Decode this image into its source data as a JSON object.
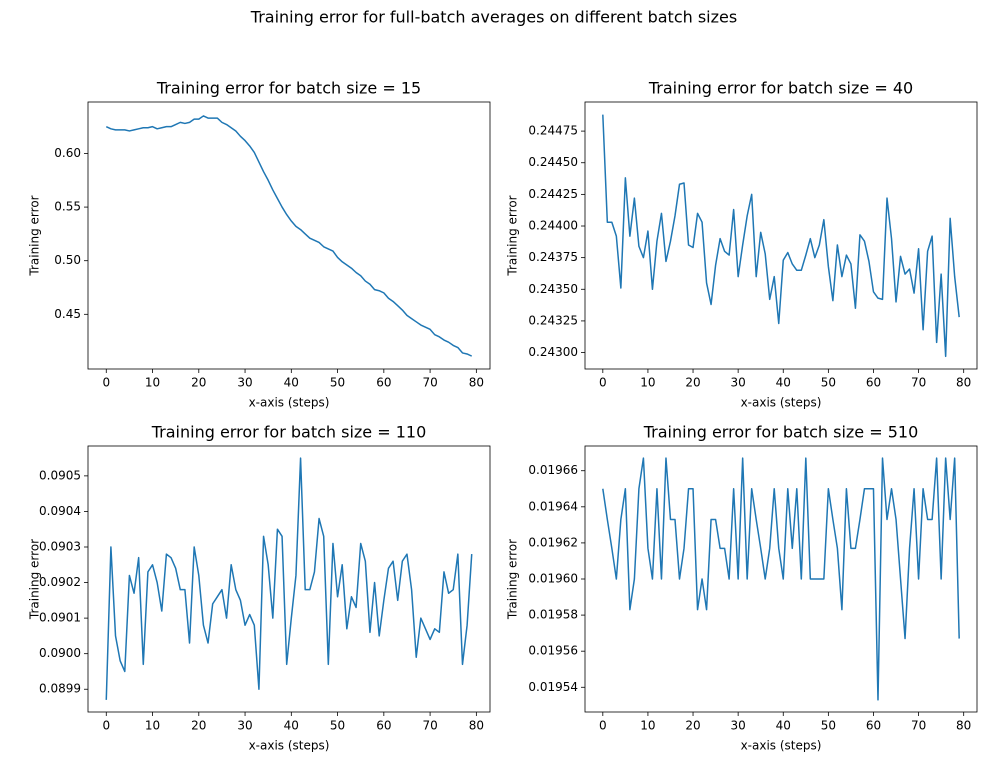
{
  "title": "Training error for full-batch averages on different batch sizes",
  "chart_data": [
    {
      "type": "line",
      "title": "Training error for batch size = 15",
      "x_label": "x-axis (steps)",
      "y_label": "Training error",
      "color": "#1f77b4",
      "x": [
        0,
        1,
        2,
        3,
        4,
        5,
        6,
        7,
        8,
        9,
        10,
        11,
        12,
        13,
        14,
        15,
        16,
        17,
        18,
        19,
        20,
        21,
        22,
        23,
        24,
        25,
        26,
        27,
        28,
        29,
        30,
        31,
        32,
        33,
        34,
        35,
        36,
        37,
        38,
        39,
        40,
        41,
        42,
        43,
        44,
        45,
        46,
        47,
        48,
        49,
        50,
        51,
        52,
        53,
        54,
        55,
        56,
        57,
        58,
        59,
        60,
        61,
        62,
        63,
        64,
        65,
        66,
        67,
        68,
        69,
        70,
        71,
        72,
        73,
        74,
        75,
        76,
        77,
        78,
        79
      ],
      "values": [
        0.625,
        0.623,
        0.622,
        0.622,
        0.622,
        0.621,
        0.622,
        0.623,
        0.624,
        0.624,
        0.625,
        0.623,
        0.624,
        0.625,
        0.625,
        0.627,
        0.629,
        0.628,
        0.629,
        0.632,
        0.632,
        0.635,
        0.633,
        0.633,
        0.633,
        0.629,
        0.627,
        0.624,
        0.621,
        0.616,
        0.612,
        0.607,
        0.601,
        0.592,
        0.583,
        0.575,
        0.566,
        0.558,
        0.55,
        0.543,
        0.537,
        0.532,
        0.529,
        0.525,
        0.521,
        0.519,
        0.517,
        0.513,
        0.511,
        0.509,
        0.503,
        0.499,
        0.496,
        0.493,
        0.489,
        0.486,
        0.481,
        0.478,
        0.473,
        0.472,
        0.47,
        0.465,
        0.462,
        0.458,
        0.454,
        0.449,
        0.446,
        0.443,
        0.44,
        0.438,
        0.436,
        0.431,
        0.429,
        0.426,
        0.424,
        0.421,
        0.419,
        0.414,
        0.413,
        0.411
      ],
      "xlim": [
        -3.95,
        82.95
      ],
      "xticks": [
        0,
        10,
        20,
        30,
        40,
        50,
        60,
        70,
        80
      ],
      "ylim": [
        0.399,
        0.648
      ],
      "yticks": [
        0.45,
        {
          "value": 0.5,
          "label": "0.50"
        },
        0.55,
        {
          "value": 0.6,
          "label": "0.60"
        }
      ]
    },
    {
      "type": "line",
      "title": "Training error for batch size = 40",
      "x_label": "x-axis (steps)",
      "y_label": "Training error",
      "color": "#1f77b4",
      "x": [
        0,
        1,
        2,
        3,
        4,
        5,
        6,
        7,
        8,
        9,
        10,
        11,
        12,
        13,
        14,
        15,
        16,
        17,
        18,
        19,
        20,
        21,
        22,
        23,
        24,
        25,
        26,
        27,
        28,
        29,
        30,
        31,
        32,
        33,
        34,
        35,
        36,
        37,
        38,
        39,
        40,
        41,
        42,
        43,
        44,
        45,
        46,
        47,
        48,
        49,
        50,
        51,
        52,
        53,
        54,
        55,
        56,
        57,
        58,
        59,
        60,
        61,
        62,
        63,
        64,
        65,
        66,
        67,
        68,
        69,
        70,
        71,
        72,
        73,
        74,
        75,
        76,
        77,
        78,
        79
      ],
      "values": [
        0.24488,
        0.24403,
        0.24403,
        0.24392,
        0.24351,
        0.24438,
        0.24392,
        0.24422,
        0.24384,
        0.24375,
        0.24396,
        0.2435,
        0.24388,
        0.2441,
        0.24372,
        0.24388,
        0.24408,
        0.24433,
        0.24434,
        0.24385,
        0.24383,
        0.2441,
        0.24403,
        0.24355,
        0.24338,
        0.24369,
        0.2439,
        0.2438,
        0.24377,
        0.24413,
        0.2436,
        0.24385,
        0.24408,
        0.24425,
        0.2436,
        0.24395,
        0.24378,
        0.24342,
        0.2436,
        0.24323,
        0.24373,
        0.24379,
        0.2437,
        0.24365,
        0.24365,
        0.24377,
        0.2439,
        0.24375,
        0.24385,
        0.24405,
        0.24368,
        0.24341,
        0.24385,
        0.2436,
        0.24377,
        0.2437,
        0.24335,
        0.24393,
        0.24388,
        0.24372,
        0.24348,
        0.24343,
        0.24342,
        0.24422,
        0.2439,
        0.2434,
        0.24376,
        0.24362,
        0.24366,
        0.24347,
        0.24382,
        0.24318,
        0.2438,
        0.24392,
        0.24308,
        0.24362,
        0.24297,
        0.24406,
        0.2436,
        0.24328
      ],
      "xlim": [
        -3.95,
        82.95
      ],
      "xticks": [
        0,
        10,
        20,
        30,
        40,
        50,
        60,
        70,
        80
      ],
      "ylim": [
        0.24287,
        0.24498
      ],
      "yticks": [
        {
          "value": 0.243,
          "label": "0.24300"
        },
        0.24325,
        {
          "value": 0.2435,
          "label": "0.24350"
        },
        0.24375,
        {
          "value": 0.244,
          "label": "0.24400"
        },
        0.24425,
        {
          "value": 0.2445,
          "label": "0.24450"
        },
        0.24475
      ]
    },
    {
      "type": "line",
      "title": "Training error for batch size = 110",
      "x_label": "x-axis (steps)",
      "y_label": "Training error",
      "color": "#1f77b4",
      "x": [
        0,
        1,
        2,
        3,
        4,
        5,
        6,
        7,
        8,
        9,
        10,
        11,
        12,
        13,
        14,
        15,
        16,
        17,
        18,
        19,
        20,
        21,
        22,
        23,
        24,
        25,
        26,
        27,
        28,
        29,
        30,
        31,
        32,
        33,
        34,
        35,
        36,
        37,
        38,
        39,
        40,
        41,
        42,
        43,
        44,
        45,
        46,
        47,
        48,
        49,
        50,
        51,
        52,
        53,
        54,
        55,
        56,
        57,
        58,
        59,
        60,
        61,
        62,
        63,
        64,
        65,
        66,
        67,
        68,
        69,
        70,
        71,
        72,
        73,
        74,
        75,
        76,
        77,
        78,
        79
      ],
      "values": [
        0.08987,
        0.0903,
        0.09005,
        0.08998,
        0.08995,
        0.09022,
        0.09017,
        0.09027,
        0.08997,
        0.09023,
        0.09025,
        0.0902,
        0.09012,
        0.09028,
        0.09027,
        0.09024,
        0.09018,
        0.09018,
        0.09003,
        0.0903,
        0.09022,
        0.09008,
        0.09003,
        0.09014,
        0.09016,
        0.09018,
        0.0901,
        0.09025,
        0.09018,
        0.09015,
        0.09008,
        0.09011,
        0.09008,
        0.0899,
        0.09033,
        0.09025,
        0.0901,
        0.09035,
        0.09033,
        0.08997,
        0.0901,
        0.09022,
        0.09055,
        0.09018,
        0.09018,
        0.09023,
        0.09038,
        0.09033,
        0.08997,
        0.09031,
        0.09016,
        0.09025,
        0.09007,
        0.09016,
        0.09013,
        0.09031,
        0.09026,
        0.09006,
        0.0902,
        0.09005,
        0.09015,
        0.09024,
        0.09026,
        0.09015,
        0.09026,
        0.09028,
        0.09018,
        0.08999,
        0.0901,
        0.09007,
        0.09004,
        0.09007,
        0.09006,
        0.09023,
        0.09017,
        0.09018,
        0.09028,
        0.08997,
        0.09008,
        0.09028
      ],
      "xlim": [
        -3.95,
        82.95
      ],
      "xticks": [
        0,
        10,
        20,
        30,
        40,
        50,
        60,
        70,
        80
      ],
      "ylim": [
        0.089836,
        0.090584
      ],
      "yticks": [
        {
          "value": 0.0899,
          "label": "0.0899"
        },
        {
          "value": 0.09,
          "label": "0.0900"
        },
        0.0901,
        0.0902,
        0.0903,
        0.0904,
        0.0905
      ]
    },
    {
      "type": "line",
      "title": "Training error for batch size = 510",
      "x_label": "x-axis (steps)",
      "y_label": "Training error",
      "color": "#1f77b4",
      "x": [
        0,
        1,
        2,
        3,
        4,
        5,
        6,
        7,
        8,
        9,
        10,
        11,
        12,
        13,
        14,
        15,
        16,
        17,
        18,
        19,
        20,
        21,
        22,
        23,
        24,
        25,
        26,
        27,
        28,
        29,
        30,
        31,
        32,
        33,
        34,
        35,
        36,
        37,
        38,
        39,
        40,
        41,
        42,
        43,
        44,
        45,
        46,
        47,
        48,
        49,
        50,
        51,
        52,
        53,
        54,
        55,
        56,
        57,
        58,
        59,
        60,
        61,
        62,
        63,
        64,
        65,
        66,
        67,
        68,
        69,
        70,
        71,
        72,
        73,
        74,
        75,
        76,
        77,
        78,
        79
      ],
      "values": [
        0.01965,
        0.019633,
        0.019617,
        0.0196,
        0.019633,
        0.01965,
        0.019583,
        0.0196,
        0.01965,
        0.019667,
        0.019617,
        0.0196,
        0.01965,
        0.0196,
        0.019667,
        0.019633,
        0.019633,
        0.0196,
        0.019617,
        0.01965,
        0.01965,
        0.019583,
        0.0196,
        0.019583,
        0.019633,
        0.019633,
        0.019617,
        0.019617,
        0.0196,
        0.01965,
        0.0196,
        0.019667,
        0.0196,
        0.01965,
        0.019633,
        0.019617,
        0.0196,
        0.019617,
        0.01965,
        0.019617,
        0.0196,
        0.01965,
        0.019617,
        0.01965,
        0.0196,
        0.019667,
        0.0196,
        0.0196,
        0.0196,
        0.0196,
        0.01965,
        0.019633,
        0.019617,
        0.019583,
        0.01965,
        0.019617,
        0.019617,
        0.019633,
        0.01965,
        0.01965,
        0.01965,
        0.019533,
        0.019667,
        0.019633,
        0.01965,
        0.019633,
        0.0196,
        0.019567,
        0.019617,
        0.01965,
        0.0196,
        0.01965,
        0.019633,
        0.019633,
        0.019667,
        0.0196,
        0.019667,
        0.019633,
        0.019667,
        0.019567
      ],
      "xlim": [
        -3.95,
        82.95
      ],
      "xticks": [
        0,
        10,
        20,
        30,
        40,
        50,
        60,
        70,
        80
      ],
      "ylim": [
        0.0195263,
        0.0196737
      ],
      "yticks": [
        0.01954,
        0.01956,
        0.01958,
        {
          "value": 0.0196,
          "label": "0.01960"
        },
        0.01962,
        0.01964,
        0.01966
      ]
    }
  ]
}
